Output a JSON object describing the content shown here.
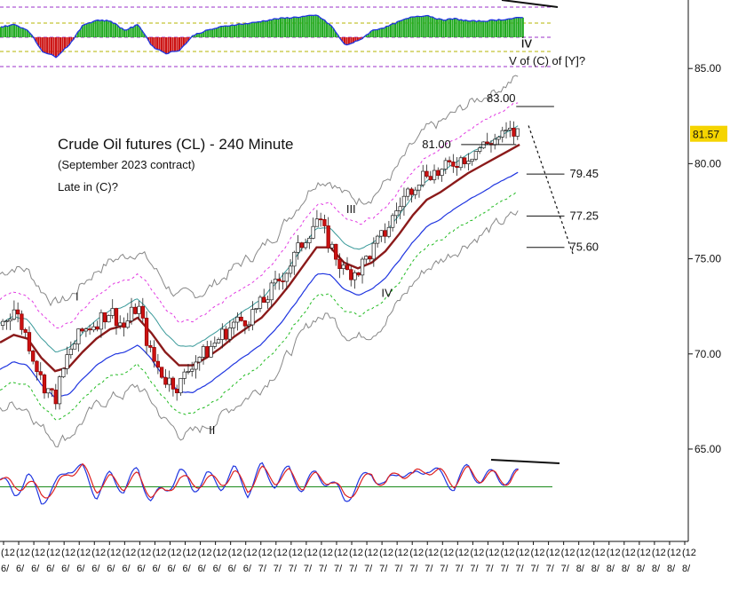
{
  "chart_data": {
    "type": "line",
    "title": "Crude Oil futures (CL) - 240 Minute",
    "subtitle": "(September 2023 contract)",
    "note": "Late in (C)?",
    "ylim": [
      60.8,
      88.6
    ],
    "y_ticks": [
      "65.00",
      "70.00",
      "75.00",
      "80.00",
      "85.00"
    ],
    "last_price": "81.57",
    "colors": {
      "price_up": "#3a7a3a",
      "price_down": "#cc1111",
      "ma_main": "#8b1a1a",
      "ma_teal": "#3a9a9a",
      "band_blue": "#1f35e0",
      "band_green": "#22bb22",
      "band_magenta": "#e23ae2",
      "envelope": "#888888",
      "histogram_pos": "#22aa22",
      "histogram_neg": "#cc1111",
      "stoch_k": "#1f35e0",
      "stoch_d": "#dd2222",
      "price_tag_bg": "#f5d400"
    },
    "wave_labels": [
      {
        "text": "I",
        "x": 11.2,
        "y": 72.8
      },
      {
        "text": "II",
        "x": 30.8,
        "y": 65.8
      },
      {
        "text": "III",
        "x": 51.0,
        "y": 77.4
      },
      {
        "text": "IV",
        "x": 56.2,
        "y": 73.0
      },
      {
        "text": "iv",
        "x": 76.5,
        "y": 86.1
      },
      {
        "text": "V of (C) of [Y]?",
        "x": 79.5,
        "y": 85.2
      }
    ],
    "target_levels": [
      {
        "label": "83.00",
        "value": 83.0,
        "x_start": 75.0,
        "x_end": 80.5
      },
      {
        "label": "81.00",
        "value": 81.0,
        "x_start": 67.0,
        "x_end": 75.0
      },
      {
        "label": "79.45",
        "value": 79.45,
        "x_start": 76.5,
        "x_end": 82.0
      },
      {
        "label": "77.25",
        "value": 77.25,
        "x_start": 76.5,
        "x_end": 82.0
      },
      {
        "label": "75.60",
        "value": 75.6,
        "x_start": 76.5,
        "x_end": 82.0
      }
    ],
    "projection": [
      [
        75.5,
        82.0
      ],
      [
        82.0,
        75.2
      ]
    ],
    "x_tick_labels": [
      "6/",
      "6/",
      "6/",
      "6/",
      "6/",
      "6/",
      "6/",
      "6/",
      "6/",
      "6/",
      "6/",
      "6/",
      "6/",
      "6/",
      "6/",
      "6/",
      "6/",
      "7/",
      "7/",
      "7/",
      "7/",
      "7/",
      "7/",
      "7/",
      "7/",
      "7/",
      "7/",
      "7/",
      "7/",
      "7/",
      "7/",
      "7/",
      "7/",
      "7/",
      "7/",
      "7/",
      "7/",
      "7/",
      "8/",
      "8/",
      "8/",
      "8/",
      "8/",
      "8/",
      "8/",
      "8/"
    ],
    "x_tick_sublabel": "(12",
    "price": {
      "x": [
        0,
        2,
        4,
        6,
        8,
        10,
        12,
        14,
        16,
        18,
        20,
        22,
        24,
        26,
        28,
        30,
        32,
        34,
        36,
        38,
        40,
        42,
        44,
        46,
        48,
        50,
        52,
        54,
        56,
        58,
        60,
        62,
        64,
        66,
        68,
        70,
        72,
        74,
        75.5
      ],
      "close": [
        71.5,
        72.4,
        70.8,
        68.6,
        67.6,
        70.1,
        71.2,
        71.7,
        72.3,
        71.4,
        72.6,
        69.8,
        68.7,
        68.3,
        69.6,
        70.1,
        70.9,
        71.6,
        71.9,
        72.6,
        73.6,
        74.6,
        75.9,
        77.1,
        75.7,
        74.3,
        74.4,
        75.4,
        76.4,
        77.8,
        78.9,
        79.6,
        79.5,
        80.1,
        80.4,
        80.9,
        81.3,
        81.6,
        81.6
      ]
    },
    "main_ma": [
      70.6,
      71.0,
      70.8,
      69.8,
      69.1,
      69.3,
      70.1,
      70.8,
      71.3,
      71.5,
      71.9,
      71.1,
      70.1,
      69.4,
      69.4,
      69.8,
      70.3,
      70.9,
      71.4,
      71.9,
      72.7,
      73.6,
      74.6,
      75.6,
      75.6,
      74.8,
      74.5,
      74.8,
      75.4,
      76.3,
      77.3,
      78.1,
      78.5,
      79.0,
      79.5,
      79.9,
      80.3,
      80.7,
      81.0
    ],
    "histogram": [
      0.45,
      0.55,
      0.3,
      -0.6,
      -0.85,
      -0.3,
      0.55,
      0.75,
      0.7,
      0.3,
      0.55,
      -0.4,
      -0.7,
      -0.55,
      0.1,
      0.3,
      0.45,
      0.55,
      0.6,
      0.7,
      0.8,
      0.85,
      0.9,
      0.95,
      0.5,
      -0.35,
      -0.15,
      0.3,
      0.45,
      0.7,
      0.9,
      0.95,
      0.75,
      0.8,
      0.7,
      0.7,
      0.75,
      0.8,
      0.85
    ],
    "stochastic_k": [
      55,
      30,
      60,
      20,
      40,
      80,
      70,
      30,
      60,
      40,
      70,
      20,
      35,
      70,
      40,
      60,
      45,
      70,
      35,
      75,
      50,
      70,
      40,
      65,
      50,
      20,
      45,
      70,
      40,
      75,
      55,
      80,
      60,
      45,
      75,
      55,
      65,
      50,
      68
    ],
    "stochastic_d": [
      60,
      40,
      50,
      30,
      35,
      70,
      75,
      40,
      55,
      45,
      60,
      30,
      30,
      60,
      45,
      55,
      50,
      65,
      40,
      70,
      55,
      65,
      45,
      60,
      55,
      25,
      40,
      65,
      45,
      70,
      60,
      75,
      65,
      50,
      70,
      58,
      62,
      52,
      65
    ]
  }
}
